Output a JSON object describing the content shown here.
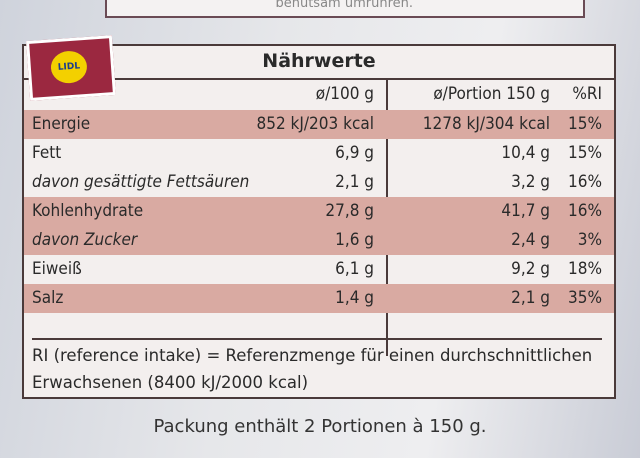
{
  "top_text": "benutsam umrühren.",
  "logo": "LIDL",
  "table": {
    "title": "Nährwerte",
    "header": [
      "ø/100 g",
      "ø/Portion 150 g",
      "%RI"
    ],
    "rows": [
      [
        "Energie",
        "852 kJ/203 kcal",
        "1278 kJ/304 kcal",
        "15%"
      ],
      [
        "Fett",
        "6,9 g",
        "10,4 g",
        "15%"
      ],
      [
        "davon gesättigte Fettsäuren",
        "2,1 g",
        "3,2 g",
        "16%"
      ],
      [
        "Kohlenhydrate",
        "27,8 g",
        "41,7 g",
        "16%"
      ],
      [
        "davon Zucker",
        "1,6 g",
        "2,4 g",
        "3%"
      ],
      [
        "Eiweiß",
        "6,1 g",
        "9,2 g",
        "18%"
      ],
      [
        "Salz",
        "1,4 g",
        "2,1 g",
        "35%"
      ]
    ],
    "footnote": "RI (reference intake) = Referenzmenge für einen durchschnittlichen Erwachsenen (8400 kJ/2000 kcal)"
  },
  "footer": "Packung enthält 2 Portionen à 150 g."
}
